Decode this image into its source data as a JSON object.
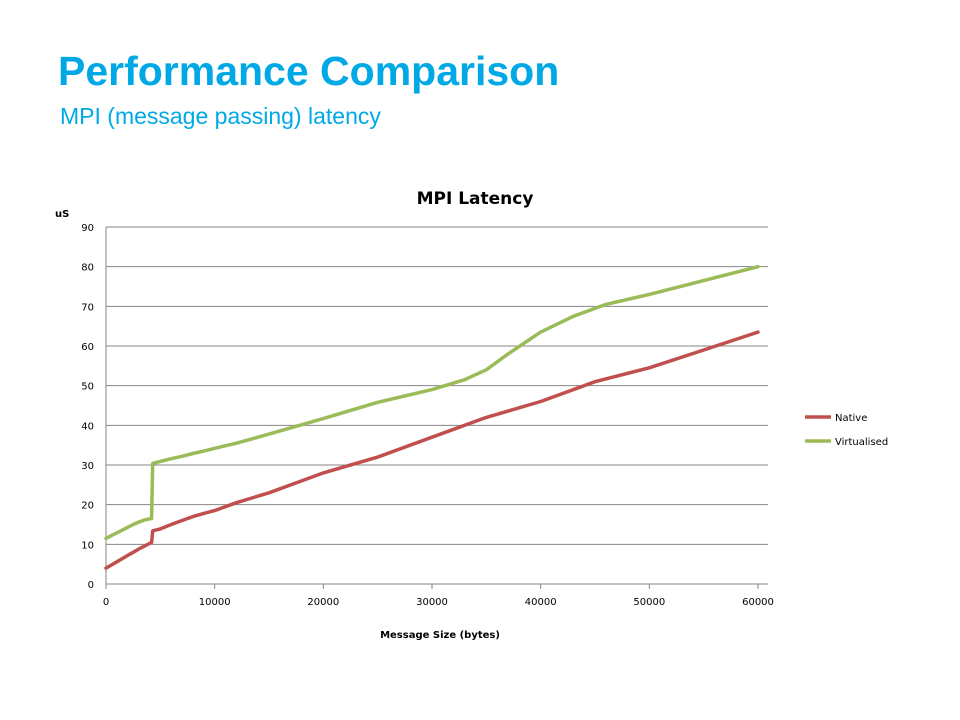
{
  "slide": {
    "title": "Performance Comparison",
    "subtitle": "MPI (message passing) latency"
  },
  "chart_data": {
    "type": "line",
    "title": "MPI Latency",
    "xlabel": "Message Size (bytes)",
    "ylabel": "uS",
    "xlim": [
      0,
      60000
    ],
    "ylim": [
      0,
      90
    ],
    "xticks": [
      0,
      10000,
      20000,
      30000,
      40000,
      50000,
      60000
    ],
    "yticks": [
      0,
      10,
      20,
      30,
      40,
      50,
      60,
      70,
      80,
      90
    ],
    "grid": "horizontal",
    "legend": "right",
    "series": [
      {
        "name": "Native",
        "color": "#c0504d",
        "x": [
          0,
          500,
          1000,
          1500,
          2000,
          2500,
          3000,
          3500,
          4000,
          4200,
          4300,
          5000,
          6000,
          7000,
          8000,
          9000,
          10000,
          10500,
          12000,
          15000,
          18000,
          20000,
          25000,
          30000,
          35000,
          40000,
          45000,
          50000,
          55000,
          60000
        ],
        "values": [
          4,
          4.8,
          5.6,
          6.4,
          7.2,
          8,
          8.8,
          9.5,
          10.2,
          10.5,
          13.4,
          13.9,
          15,
          16,
          17,
          17.8,
          18.5,
          19,
          20.5,
          23,
          26,
          28,
          32,
          37,
          42,
          46,
          51,
          54.5,
          59,
          63.5
        ]
      },
      {
        "name": "Virtualised",
        "color": "#9bbb59",
        "x": [
          0,
          500,
          1000,
          1500,
          2000,
          2500,
          3000,
          3500,
          4000,
          4200,
          4300,
          5000,
          6000,
          7000,
          8000,
          9000,
          10000,
          12000,
          15000,
          20000,
          25000,
          30000,
          33000,
          35000,
          37000,
          40000,
          43000,
          46000,
          50000,
          55000,
          60000
        ],
        "values": [
          11.5,
          12.2,
          12.9,
          13.6,
          14.3,
          15,
          15.6,
          16.1,
          16.4,
          16.5,
          30.4,
          30.9,
          31.6,
          32.2,
          32.9,
          33.5,
          34.2,
          35.5,
          37.8,
          41.7,
          45.8,
          49,
          51.5,
          54,
          58,
          63.5,
          67.5,
          70.5,
          73,
          76.5,
          80
        ]
      }
    ]
  }
}
